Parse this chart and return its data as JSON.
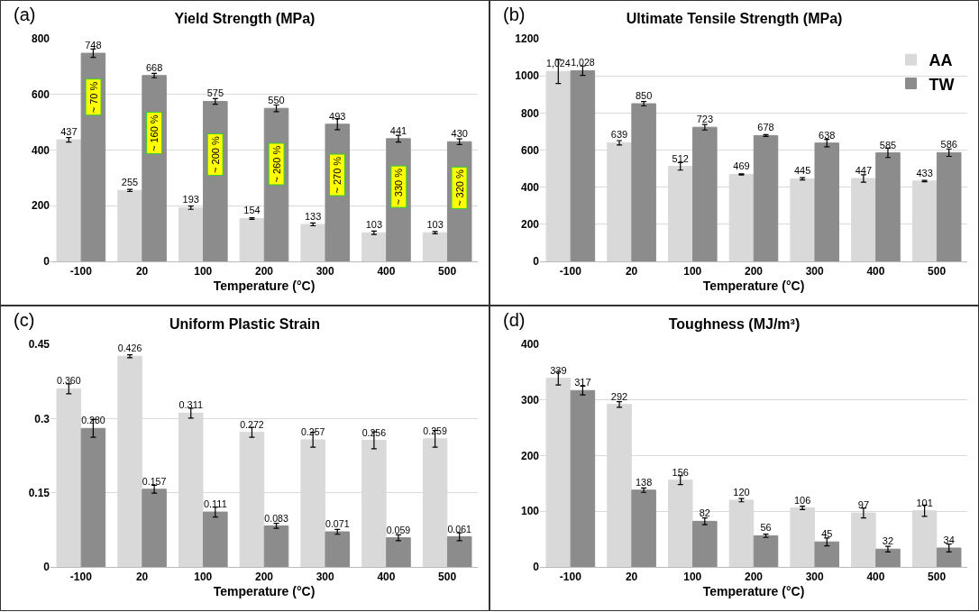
{
  "chart_data": [
    {
      "type": "bar",
      "title": "Yield Strength (MPa)",
      "xlabel": "Temperature (°C)",
      "categories": [
        "-100",
        "20",
        "100",
        "200",
        "300",
        "400",
        "500"
      ],
      "ylim": [
        0,
        800
      ],
      "yticks": [
        0,
        200,
        400,
        600,
        800
      ],
      "grid": "y",
      "legend": false,
      "annotations": [
        "(a)",
        {
          "text": "~ 70 %",
          "x": "-100",
          "y": 590
        },
        {
          "text": "~ 160 %",
          "x": "20",
          "y": 460
        },
        {
          "text": "~ 200 %",
          "x": "100",
          "y": 385
        },
        {
          "text": "~ 260 %",
          "x": "200",
          "y": 350
        },
        {
          "text": "~ 270 %",
          "x": "300",
          "y": 310
        },
        {
          "text": "~ 330 %",
          "x": "400",
          "y": 270
        },
        {
          "text": "~ 320 %",
          "x": "500",
          "y": 265
        }
      ],
      "series": [
        {
          "color": "#d9d9d9",
          "values": [
            437,
            255,
            193,
            154,
            133,
            103,
            103
          ],
          "errors": [
            8,
            4,
            6,
            3,
            5,
            6,
            4
          ],
          "value_labels": [
            "437",
            "255",
            "193",
            "154",
            "133",
            "103",
            "103"
          ]
        },
        {
          "color": "#8c8c8c",
          "values": [
            748,
            668,
            575,
            550,
            493,
            441,
            430
          ],
          "errors": [
            15,
            8,
            10,
            12,
            20,
            12,
            10
          ],
          "value_labels": [
            "748",
            "668",
            "575",
            "550",
            "493",
            "441",
            "430"
          ]
        }
      ]
    },
    {
      "type": "bar",
      "title": "Ultimate Tensile Strength (MPa)",
      "xlabel": "Temperature (°C)",
      "categories": [
        "-100",
        "20",
        "100",
        "200",
        "300",
        "400",
        "500"
      ],
      "ylim": [
        0,
        1200
      ],
      "yticks": [
        0,
        200,
        400,
        600,
        800,
        1000,
        1200
      ],
      "grid": "y",
      "legend": "top right",
      "annotations": [
        "(b)"
      ],
      "series": [
        {
          "name": "AA",
          "color": "#d9d9d9",
          "values": [
            1024,
            639,
            512,
            469,
            445,
            447,
            433
          ],
          "errors": [
            65,
            12,
            20,
            3,
            6,
            20,
            4
          ],
          "value_labels": [
            "1,024",
            "639",
            "512",
            "469",
            "445",
            "447",
            "433"
          ]
        },
        {
          "name": "TW",
          "color": "#8c8c8c",
          "values": [
            1028,
            850,
            723,
            678,
            638,
            585,
            586
          ],
          "errors": [
            25,
            12,
            15,
            5,
            20,
            25,
            20
          ],
          "value_labels": [
            "1,028",
            "850",
            "723",
            "678",
            "638",
            "585",
            "586"
          ]
        }
      ]
    },
    {
      "type": "bar",
      "title": "Uniform Plastic Strain",
      "xlabel": "Temperature (°C)",
      "categories": [
        "-100",
        "20",
        "100",
        "200",
        "300",
        "400",
        "500"
      ],
      "ylim": [
        0,
        0.45
      ],
      "yticks": [
        0,
        0.15,
        0.3,
        0.45
      ],
      "grid": "y",
      "legend": false,
      "annotations": [
        "(c)"
      ],
      "series": [
        {
          "color": "#d9d9d9",
          "values": [
            0.36,
            0.426,
            0.311,
            0.272,
            0.257,
            0.256,
            0.259
          ],
          "errors": [
            0.01,
            0.003,
            0.01,
            0.01,
            0.015,
            0.017,
            0.017
          ],
          "value_labels": [
            "0.360",
            "0.426",
            "0.311",
            "0.272",
            "0.257",
            "0.256",
            "0.259"
          ]
        },
        {
          "color": "#8c8c8c",
          "values": [
            0.28,
            0.157,
            0.111,
            0.083,
            0.071,
            0.059,
            0.061
          ],
          "errors": [
            0.018,
            0.008,
            0.01,
            0.005,
            0.005,
            0.006,
            0.008
          ],
          "value_labels": [
            "0.280",
            "0.157",
            "0.111",
            "0.083",
            "0.071",
            "0.059",
            "0.061"
          ]
        }
      ]
    },
    {
      "type": "bar",
      "title": "Toughness (MJ/m³)",
      "xlabel": "Temperature (°C)",
      "categories": [
        "-100",
        "20",
        "100",
        "200",
        "300",
        "400",
        "500"
      ],
      "ylim": [
        0,
        400
      ],
      "yticks": [
        0,
        100,
        200,
        300,
        400
      ],
      "grid": "y",
      "legend": false,
      "annotations": [
        "(d)"
      ],
      "series": [
        {
          "color": "#d9d9d9",
          "values": [
            339,
            292,
            156,
            120,
            106,
            97,
            101
          ],
          "errors": [
            12,
            5,
            8,
            3,
            3,
            9,
            10
          ],
          "value_labels": [
            "339",
            "292",
            "156",
            "120",
            "106",
            "97",
            "101"
          ]
        },
        {
          "color": "#8c8c8c",
          "values": [
            317,
            138,
            82,
            56,
            45,
            32,
            34
          ],
          "errors": [
            8,
            4,
            6,
            3,
            7,
            5,
            7
          ],
          "value_labels": [
            "317",
            "138",
            "82",
            "56",
            "45",
            "32",
            "34"
          ]
        }
      ]
    }
  ]
}
